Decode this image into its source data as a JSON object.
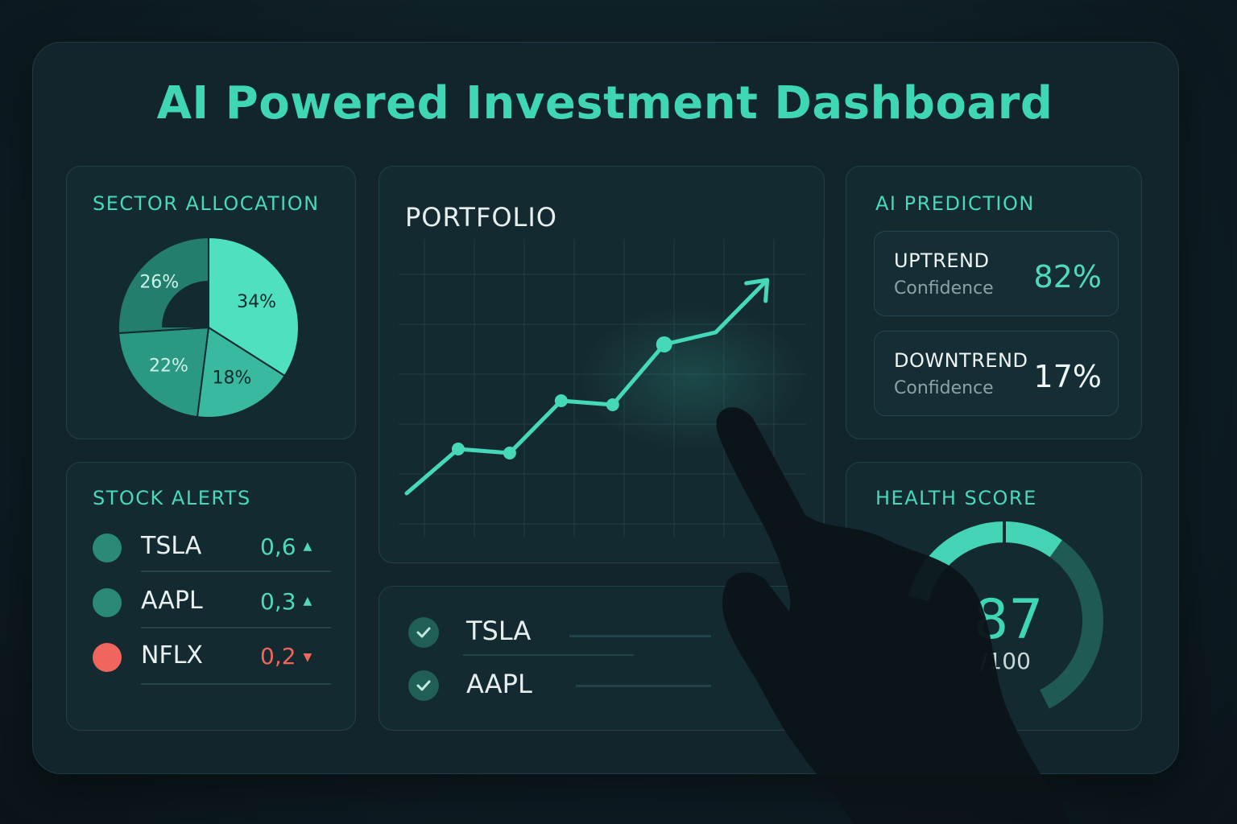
{
  "title": "AI Powered Investment Dashboard",
  "sector_allocation": {
    "title": "SECTOR ALLOCATION",
    "slices": [
      {
        "label": "34%",
        "value": 34,
        "color": "#4fe0c0"
      },
      {
        "label": "18%",
        "value": 18,
        "color": "#39b9a0"
      },
      {
        "label": "22%",
        "value": 22,
        "color": "#2a9882"
      },
      {
        "label": "26%",
        "value": 26,
        "color": "#237e6e"
      }
    ]
  },
  "stock_alerts": {
    "title": "STOCK ALERTS",
    "items": [
      {
        "symbol": "TSLA",
        "value": "0,6",
        "arrow": "▲",
        "color": "#2b8a77",
        "value_color": "#4fd9bb"
      },
      {
        "symbol": "AAPL",
        "value": "0,3",
        "arrow": "▲",
        "color": "#2b8a77",
        "value_color": "#4fd9bb"
      },
      {
        "symbol": "NFLX",
        "value": "0,2",
        "arrow": "▼",
        "color": "#f0655c",
        "value_color": "#f0655c"
      }
    ]
  },
  "portfolio": {
    "title": "PORTFOLIO",
    "chart_data": {
      "type": "line",
      "title": "PORTFOLIO",
      "x": [
        0,
        1,
        2,
        3,
        4,
        5,
        6,
        7
      ],
      "series": [
        {
          "values": [
            1.0,
            2.1,
            2.0,
            3.3,
            3.2,
            4.7,
            5.0,
            6.3
          ]
        }
      ],
      "grid": true
    }
  },
  "watchlist": {
    "items": [
      {
        "symbol": "TSLA",
        "checked": true
      },
      {
        "symbol": "AAPL",
        "checked": true
      }
    ]
  },
  "ai_prediction": {
    "title": "AI PREDICTION",
    "items": [
      {
        "label": "UPTREND",
        "sub": "Confidence",
        "value": "82%",
        "value_color": "#4fd9bb"
      },
      {
        "label": "DOWNTREND",
        "sub": "Confidence",
        "value": "17%",
        "value_color": "#eef5f3"
      }
    ]
  },
  "health_score": {
    "title": "HEALTH SCORE",
    "score": "87",
    "max": "/100",
    "fraction": 0.87
  },
  "colors": {
    "accent": "#3fd6b6",
    "negative": "#f0655c",
    "card": "#142a31"
  }
}
